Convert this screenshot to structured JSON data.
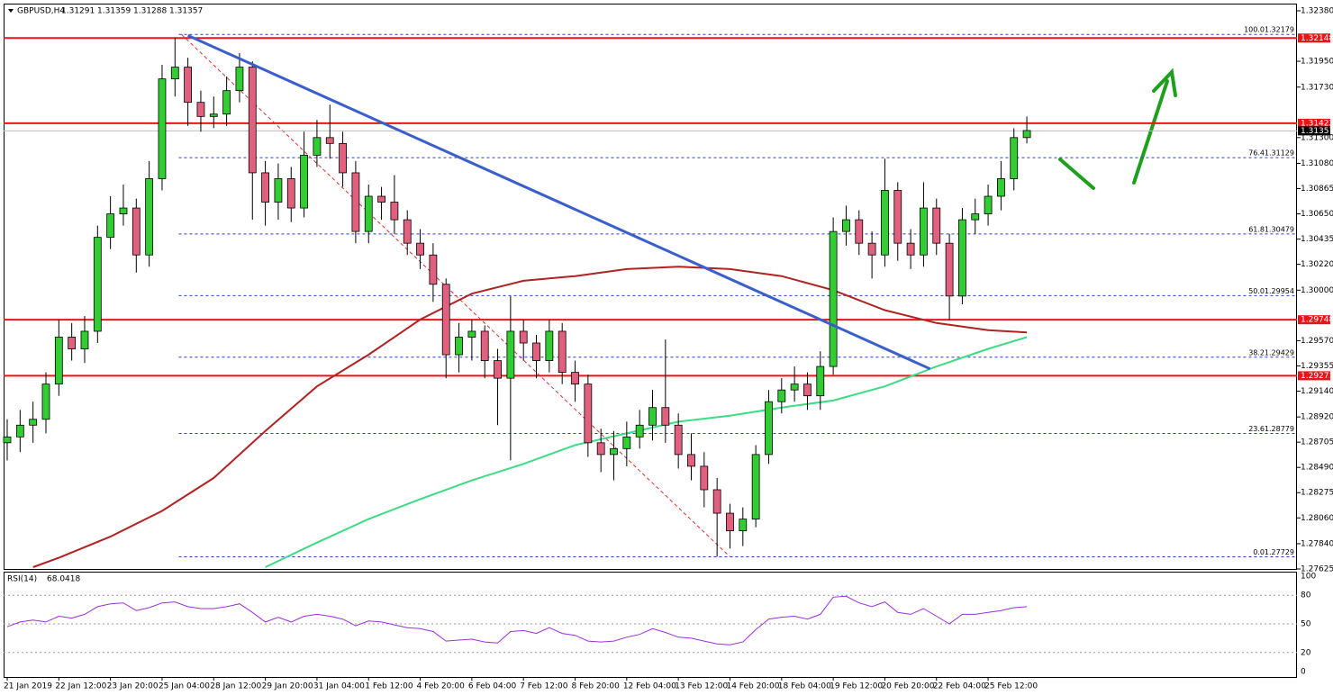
{
  "header": {
    "symbol": "GBPUSD,H4",
    "open": 1.31291,
    "high": 1.31359,
    "low": 1.31288,
    "close": 1.31357
  },
  "chart_data": [
    {
      "type": "candlestick",
      "categories": [
        "21 Jan 2019",
        null,
        null,
        null,
        "22 Jan 12:00",
        null,
        null,
        null,
        "23 Jan 20:00",
        null,
        null,
        null,
        "25 Jan 04:00",
        null,
        null,
        null,
        "28 Jan 12:00",
        null,
        null,
        null,
        "29 Jan 20:00",
        null,
        null,
        null,
        "31 Jan 04:00",
        null,
        null,
        null,
        "1 Feb 12:00",
        null,
        null,
        null,
        "4 Feb 20:00",
        null,
        null,
        null,
        "6 Feb 04:00",
        null,
        null,
        null,
        "7 Feb 12:00",
        null,
        null,
        null,
        "8 Feb 20:00",
        null,
        null,
        null,
        "12 Feb 04:00",
        null,
        null,
        null,
        "13 Feb 12:00",
        null,
        null,
        null,
        "14 Feb 20:00",
        null,
        null,
        null,
        "18 Feb 04:00",
        null,
        null,
        null,
        "19 Feb 12:00",
        null,
        null,
        null,
        "20 Feb 20:00",
        null,
        null,
        null,
        "22 Feb 04:00",
        null,
        null,
        null,
        "25 Feb 12:00",
        null,
        null,
        null
      ],
      "ohlc": [
        [
          1.287,
          1.289,
          1.2855,
          1.2875
        ],
        [
          1.2875,
          1.2898,
          1.2862,
          1.2885
        ],
        [
          1.2885,
          1.2905,
          1.287,
          1.289
        ],
        [
          1.289,
          1.293,
          1.2878,
          1.292
        ],
        [
          1.292,
          1.2975,
          1.291,
          1.296
        ],
        [
          1.296,
          1.2972,
          1.294,
          1.295
        ],
        [
          1.295,
          1.2978,
          1.2938,
          1.2965
        ],
        [
          1.2965,
          1.3055,
          1.2955,
          1.3045
        ],
        [
          1.3045,
          1.308,
          1.3035,
          1.3065
        ],
        [
          1.3065,
          1.309,
          1.3055,
          1.307
        ],
        [
          1.307,
          1.3078,
          1.3015,
          1.303
        ],
        [
          1.303,
          1.311,
          1.302,
          1.3095
        ],
        [
          1.3095,
          1.3192,
          1.3085,
          1.318
        ],
        [
          1.318,
          1.3215,
          1.3165,
          1.319
        ],
        [
          1.319,
          1.3198,
          1.314,
          1.316
        ],
        [
          1.316,
          1.317,
          1.3135,
          1.3148
        ],
        [
          1.3148,
          1.3165,
          1.3138,
          1.315
        ],
        [
          1.315,
          1.3182,
          1.314,
          1.317
        ],
        [
          1.317,
          1.3202,
          1.316,
          1.319
        ],
        [
          1.319,
          1.3195,
          1.306,
          1.31
        ],
        [
          1.31,
          1.311,
          1.3055,
          1.3075
        ],
        [
          1.3075,
          1.3108,
          1.306,
          1.3095
        ],
        [
          1.3095,
          1.3105,
          1.3058,
          1.307
        ],
        [
          1.307,
          1.3135,
          1.3062,
          1.3115
        ],
        [
          1.3115,
          1.3145,
          1.3105,
          1.313
        ],
        [
          1.313,
          1.3158,
          1.3112,
          1.3125
        ],
        [
          1.3125,
          1.3135,
          1.3088,
          1.31
        ],
        [
          1.31,
          1.311,
          1.304,
          1.305
        ],
        [
          1.305,
          1.309,
          1.304,
          1.308
        ],
        [
          1.308,
          1.3088,
          1.306,
          1.3075
        ],
        [
          1.3075,
          1.3098,
          1.3048,
          1.306
        ],
        [
          1.306,
          1.3068,
          1.303,
          1.304
        ],
        [
          1.304,
          1.3052,
          1.3018,
          1.303
        ],
        [
          1.303,
          1.304,
          1.299,
          1.3005
        ],
        [
          1.3005,
          1.301,
          1.2925,
          1.2945
        ],
        [
          1.2945,
          1.2972,
          1.293,
          1.296
        ],
        [
          1.296,
          1.2975,
          1.294,
          1.2965
        ],
        [
          1.2965,
          1.297,
          1.2925,
          1.294
        ],
        [
          1.294,
          1.295,
          1.2885,
          1.2925
        ],
        [
          1.2925,
          1.2995,
          1.2855,
          1.2965
        ],
        [
          1.2965,
          1.2975,
          1.294,
          1.2955
        ],
        [
          1.2955,
          1.2962,
          1.2925,
          1.294
        ],
        [
          1.294,
          1.2975,
          1.293,
          1.2965
        ],
        [
          1.2965,
          1.2972,
          1.292,
          1.293
        ],
        [
          1.293,
          1.294,
          1.2905,
          1.292
        ],
        [
          1.292,
          1.2928,
          1.2858,
          1.287
        ],
        [
          1.287,
          1.2882,
          1.2845,
          1.286
        ],
        [
          1.286,
          1.288,
          1.2838,
          1.2865
        ],
        [
          1.2865,
          1.2888,
          1.285,
          1.2875
        ],
        [
          1.2875,
          1.2898,
          1.2865,
          1.2885
        ],
        [
          1.2885,
          1.2915,
          1.2872,
          1.29
        ],
        [
          1.29,
          1.2958,
          1.287,
          1.2885
        ],
        [
          1.2885,
          1.2895,
          1.2848,
          1.286
        ],
        [
          1.286,
          1.2878,
          1.2838,
          1.285
        ],
        [
          1.285,
          1.2862,
          1.2815,
          1.283
        ],
        [
          1.283,
          1.284,
          1.2773,
          1.281
        ],
        [
          1.281,
          1.2818,
          1.278,
          1.2795
        ],
        [
          1.2795,
          1.2815,
          1.2782,
          1.2805
        ],
        [
          1.2805,
          1.2868,
          1.2798,
          1.286
        ],
        [
          1.286,
          1.2915,
          1.2852,
          1.2905
        ],
        [
          1.2905,
          1.2925,
          1.2895,
          1.2915
        ],
        [
          1.2915,
          1.2935,
          1.2905,
          1.292
        ],
        [
          1.292,
          1.293,
          1.2898,
          1.291
        ],
        [
          1.291,
          1.2948,
          1.2898,
          1.2935
        ],
        [
          1.2935,
          1.3062,
          1.2928,
          1.305
        ],
        [
          1.305,
          1.3072,
          1.3038,
          1.306
        ],
        [
          1.306,
          1.3068,
          1.303,
          1.304
        ],
        [
          1.304,
          1.305,
          1.301,
          1.303
        ],
        [
          1.303,
          1.3112,
          1.302,
          1.3085
        ],
        [
          1.3085,
          1.3092,
          1.3025,
          1.304
        ],
        [
          1.304,
          1.3052,
          1.3018,
          1.303
        ],
        [
          1.303,
          1.3092,
          1.302,
          1.307
        ],
        [
          1.307,
          1.3078,
          1.303,
          1.304
        ],
        [
          1.304,
          1.3048,
          1.2975,
          1.2995
        ],
        [
          1.2995,
          1.307,
          1.2988,
          1.306
        ],
        [
          1.306,
          1.3078,
          1.3048,
          1.3065
        ],
        [
          1.3065,
          1.309,
          1.3055,
          1.308
        ],
        [
          1.308,
          1.311,
          1.3068,
          1.3095
        ],
        [
          1.3095,
          1.3138,
          1.3085,
          1.313
        ],
        [
          1.313,
          1.3148,
          1.3125,
          1.3136
        ]
      ],
      "up_color": "#32cd32",
      "down_color": "#e0607e",
      "ylim": [
        1.27625,
        1.3238
      ],
      "yticks": [
        {
          "value": 1.3238,
          "label": "1.32380"
        },
        {
          "value": 1.3195,
          "label": "1.31950"
        },
        {
          "value": 1.3173,
          "label": "1.31730"
        },
        {
          "value": 1.313,
          "label": "1.31300"
        },
        {
          "value": 1.3108,
          "label": "1.31080"
        },
        1.30865,
        {
          "value": 1.3065,
          "label": "1.30650"
        },
        1.30435,
        {
          "value": 1.3022,
          "label": "1.30220"
        },
        {
          "value": 1.3,
          "label": "1.30000"
        },
        {
          "value": 1.2957,
          "label": "1.29570"
        },
        1.29355,
        {
          "value": 1.2914,
          "label": "1.29140"
        },
        {
          "value": 1.2892,
          "label": "1.28920"
        },
        1.28705,
        {
          "value": 1.2849,
          "label": "1.28490"
        },
        1.28275,
        {
          "value": 1.2806,
          "label": "1.28060"
        },
        {
          "value": 1.2784,
          "label": "1.27840"
        },
        1.27625
      ],
      "moving_averages": [
        {
          "color": "#b22222",
          "x": [
            2,
            4,
            8,
            12,
            16,
            20,
            24,
            28,
            32,
            36,
            40,
            44,
            48,
            52,
            56,
            60,
            64,
            68,
            72,
            76,
            79
          ],
          "values": [
            1.2764,
            1.2772,
            1.279,
            1.2812,
            1.284,
            1.288,
            1.2918,
            1.2945,
            1.2975,
            1.2997,
            1.3008,
            1.3012,
            1.3018,
            1.302,
            1.3018,
            1.3012,
            1.3,
            1.2983,
            1.2972,
            1.2966,
            1.2964
          ]
        },
        {
          "color": "#3ddc84",
          "x": [
            20,
            24,
            28,
            32,
            36,
            40,
            44,
            48,
            52,
            56,
            60,
            64,
            68,
            72,
            76,
            79
          ],
          "values": [
            1.2764,
            1.2785,
            1.2805,
            1.2822,
            1.2838,
            1.2852,
            1.2868,
            1.2878,
            1.2888,
            1.2893,
            1.29,
            1.2906,
            1.2918,
            1.2935,
            1.295,
            1.296
          ]
        }
      ],
      "trendline": {
        "color": "#3a5fcd",
        "x": [
          14,
          71.5
        ],
        "values": [
          1.3217,
          1.2933
        ]
      },
      "fib_retracement": {
        "color": "#2a3fc0",
        "anchor_x": [
          13.5,
          56
        ],
        "levels": [
          {
            "ratio": "100.0",
            "value": 1.32179
          },
          {
            "ratio": "76.4",
            "value": 1.31129
          },
          {
            "ratio": "61.8",
            "value": 1.30479
          },
          {
            "ratio": "50.0",
            "value": 1.29954
          },
          {
            "ratio": "38.2",
            "value": 1.29429
          },
          {
            "ratio": "23.6",
            "value": 1.28779
          },
          {
            "ratio": "0.0",
            "value": 1.27729
          }
        ]
      },
      "levels": {
        "color": "#e8151b",
        "values": [
          1.32148,
          1.31422,
          1.29748,
          1.29271
        ]
      },
      "last_price": 1.31357
    },
    {
      "type": "line",
      "name": "RSI(14)",
      "color": "#9b30d9",
      "values": [
        47,
        52,
        54,
        52,
        58,
        56,
        60,
        68,
        71,
        72,
        64,
        67,
        72,
        73,
        68,
        66,
        66,
        68,
        71,
        62,
        52,
        57,
        52,
        58,
        60,
        58,
        55,
        48,
        53,
        52,
        49,
        46,
        45,
        42,
        32,
        33,
        34,
        31,
        30,
        42,
        43,
        40,
        46,
        40,
        38,
        32,
        31,
        32,
        36,
        39,
        45,
        41,
        36,
        35,
        32,
        29,
        28,
        31,
        44,
        55,
        57,
        58,
        55,
        60,
        78,
        79,
        72,
        68,
        73,
        62,
        60,
        66,
        58,
        50,
        60,
        60,
        62,
        64,
        67,
        68.0418
      ],
      "ylim": [
        0,
        100
      ],
      "yticks": [
        100,
        80,
        50,
        20,
        0
      ]
    }
  ]
}
